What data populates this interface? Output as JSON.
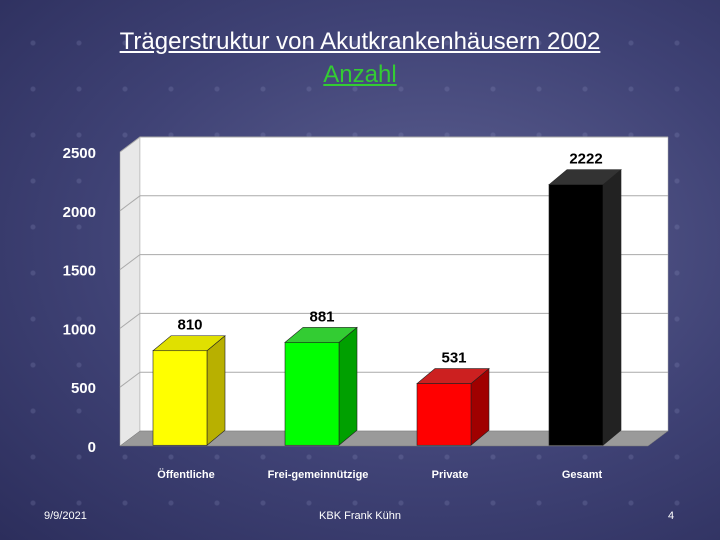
{
  "slide": {
    "title_line1": "Trägerstruktur von Akutkrankenhäusern 2002",
    "title_line2": "Anzahl"
  },
  "footer": {
    "date": "9/9/2021",
    "author": "KBK Frank Kühn",
    "page": "4"
  },
  "chart_data": {
    "type": "bar",
    "title": "",
    "categories": [
      "Öffentliche",
      "Frei-gemeinnützige",
      "Private",
      "Gesamt"
    ],
    "values": [
      810,
      881,
      531,
      2222
    ],
    "data_labels": [
      "810",
      "881",
      "531",
      "2222"
    ],
    "yticks": [
      "0",
      "500",
      "1000",
      "1500",
      "2000",
      "2500"
    ],
    "ylim": [
      0,
      2500
    ],
    "grid": true,
    "legend": "none",
    "colors": [
      {
        "face": "#ffff00",
        "side": "#b8b000",
        "top": "#e0e000"
      },
      {
        "face": "#00ff00",
        "side": "#00a000",
        "top": "#33cc33"
      },
      {
        "face": "#ff0000",
        "side": "#a00000",
        "top": "#cc2020"
      },
      {
        "face": "#000000",
        "side": "#222222",
        "top": "#333333"
      }
    ],
    "plot_background": "#ffffff",
    "floor_color": "#9a9a9a"
  }
}
